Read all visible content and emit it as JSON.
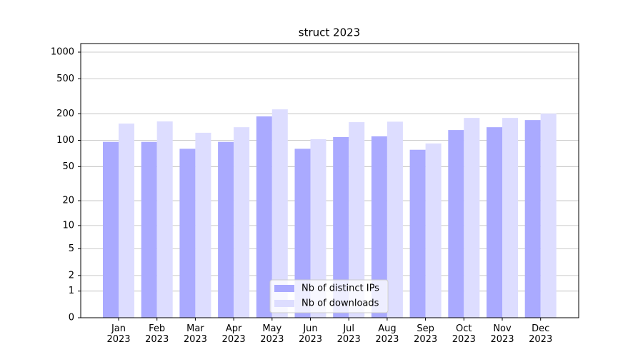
{
  "chart_data": {
    "type": "bar",
    "title": "struct 2023",
    "categories": [
      "Jan 2023",
      "Feb 2023",
      "Mar 2023",
      "Apr 2023",
      "May 2023",
      "Jun 2023",
      "Jul 2023",
      "Aug 2023",
      "Sep 2023",
      "Oct 2023",
      "Nov 2023",
      "Dec 2023"
    ],
    "series": [
      {
        "name": "Nb of distinct IPs",
        "color": "#aaaaff",
        "values": [
          96,
          96,
          80,
          96,
          187,
          80,
          109,
          111,
          78,
          131,
          141,
          170
        ]
      },
      {
        "name": "Nb of downloads",
        "color": "#ddddff",
        "values": [
          155,
          164,
          122,
          141,
          225,
          103,
          161,
          163,
          92,
          180,
          180,
          201
        ]
      }
    ],
    "yscale": "symlog",
    "ylim": [
      0,
      1250
    ],
    "yticks": [
      0,
      1,
      2,
      5,
      10,
      20,
      50,
      100,
      200,
      500,
      1000
    ],
    "grid": true,
    "legend": "lower center"
  }
}
